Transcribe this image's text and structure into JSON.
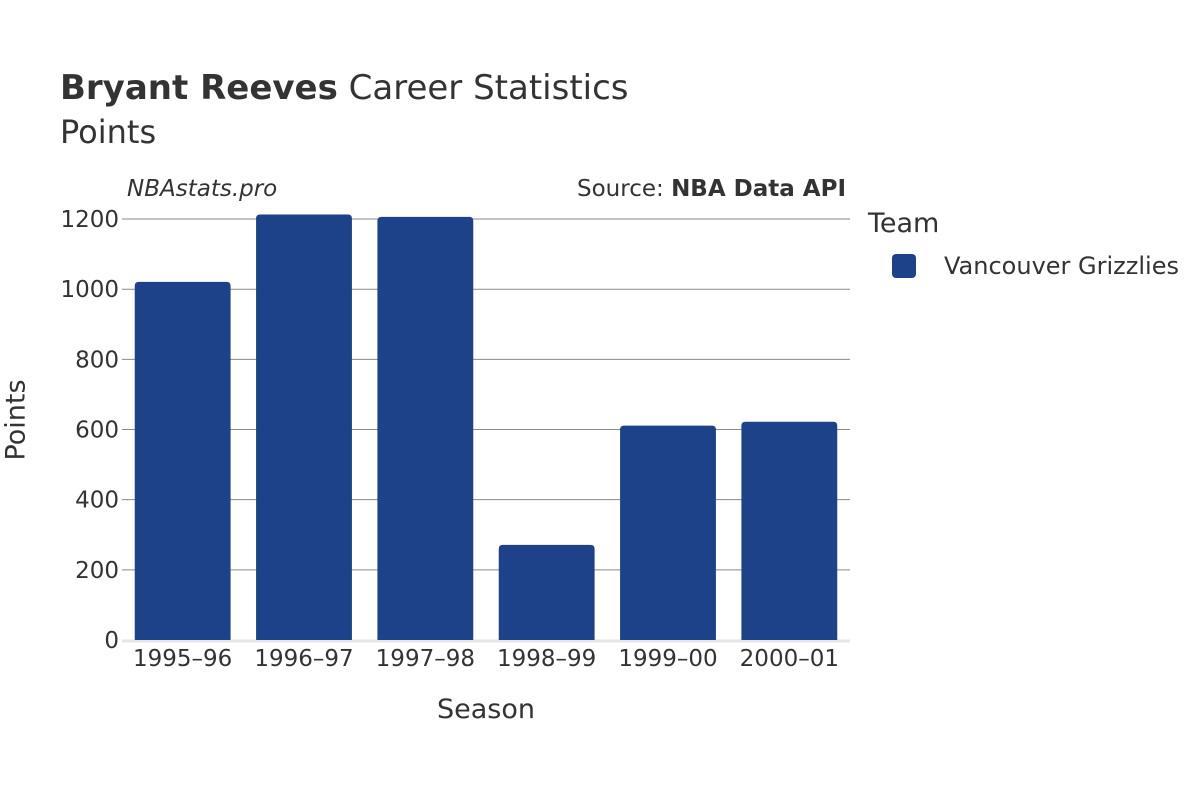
{
  "header": {
    "title_bold": "Bryant Reeves",
    "title_rest": " Career Statistics",
    "subtitle": "Points"
  },
  "brand": "NBAstats.pro",
  "source": {
    "prefix": "Source: ",
    "name": "NBA Data API"
  },
  "legend": {
    "title": "Team",
    "items": [
      {
        "label": "Vancouver Grizzlies",
        "color": "#1d428a"
      }
    ]
  },
  "chart_data": {
    "type": "bar",
    "categories": [
      "1995–96",
      "1996–97",
      "1997–98",
      "1998–99",
      "1999–00",
      "2000–01"
    ],
    "series": [
      {
        "name": "Vancouver Grizzlies",
        "values": [
          1021,
          1213,
          1206,
          271,
          611,
          622
        ],
        "color": "#1d428a"
      }
    ],
    "xlabel": "Season",
    "ylabel": "Points",
    "ylim": [
      0,
      1240
    ],
    "yticks": [
      0,
      200,
      400,
      600,
      800,
      1000,
      1200
    ],
    "grid": true,
    "legend_position": "right"
  }
}
